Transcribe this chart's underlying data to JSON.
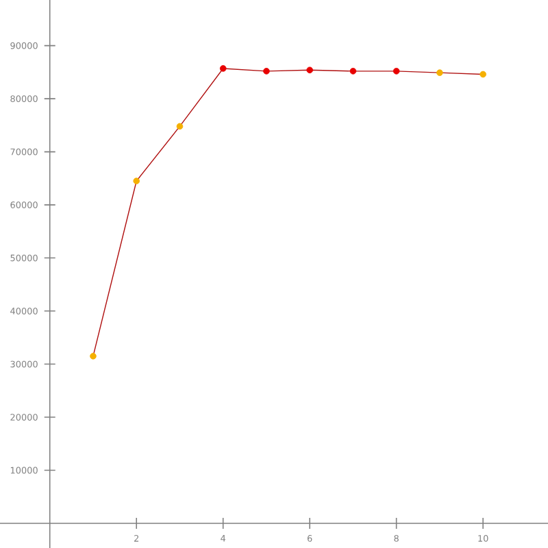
{
  "chart_data": {
    "type": "line",
    "x": [
      1,
      2,
      3,
      4,
      5,
      6,
      7,
      8,
      9,
      10
    ],
    "series": [
      {
        "color": "#b01010",
        "colors": [
          "#f5b000",
          "#f5b000",
          "#f5b000",
          "#e80000",
          "#e80000",
          "#e80000",
          "#e80000",
          "#e80000",
          "#f5b000",
          "#f5b000"
        ],
        "values": [
          31500,
          64500,
          74800,
          85700,
          85200,
          85400,
          85200,
          85200,
          84900,
          84600
        ]
      }
    ],
    "xlim": [
      -1.15,
      11.5
    ],
    "ylim": [
      -4650,
      98600
    ],
    "xticks": [
      2,
      4,
      6,
      8,
      10
    ],
    "yticks": [
      10000,
      20000,
      30000,
      40000,
      50000,
      60000,
      70000,
      80000,
      90000
    ],
    "marker": "circle",
    "line_style": "solid",
    "grid": false
  }
}
